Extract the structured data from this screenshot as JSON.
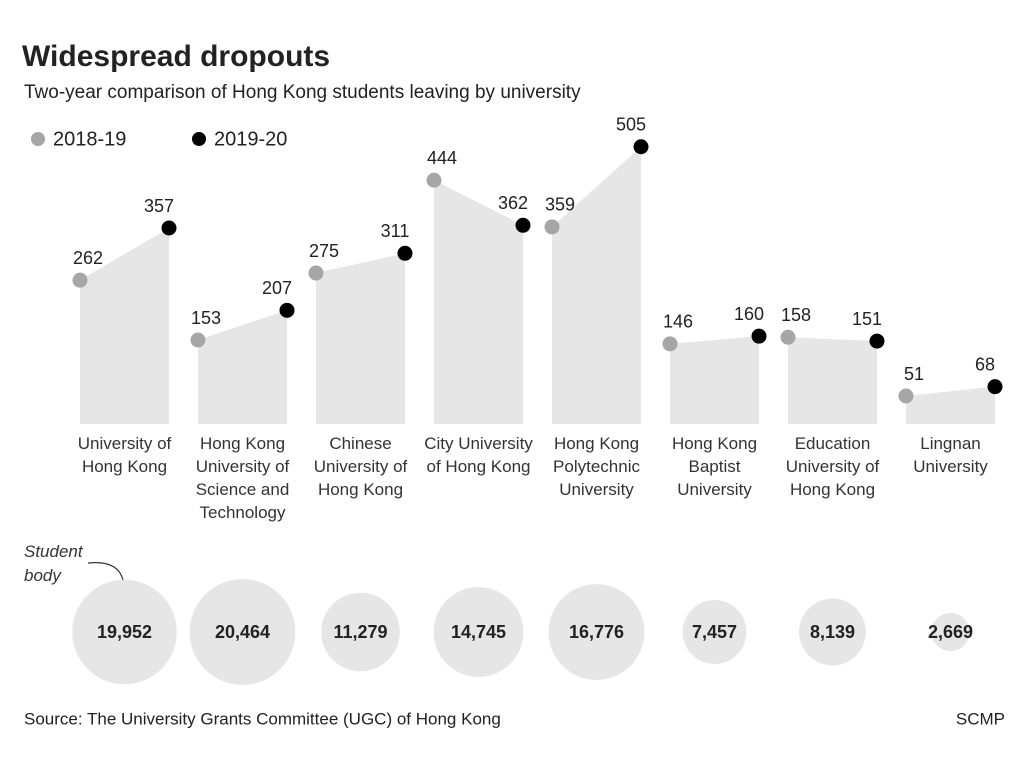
{
  "chart_data": {
    "type": "slope",
    "title": "Widespread dropouts",
    "subtitle": "Two-year comparison of Hong Kong students leaving by university",
    "categories": [
      "University of Hong Kong",
      "Hong Kong University of Science and Technology",
      "Chinese University of Hong Kong",
      "City University of Hong Kong",
      "Hong Kong Polytechnic University",
      "Hong Kong Baptist University",
      "Education University of Hong Kong",
      "Lingnan University"
    ],
    "series": [
      {
        "name": "2018-19",
        "color": "#a6a6a6",
        "values": [
          262,
          153,
          275,
          444,
          359,
          146,
          158,
          51
        ]
      },
      {
        "name": "2019-20",
        "color": "#000000",
        "values": [
          357,
          207,
          311,
          362,
          505,
          160,
          151,
          68
        ]
      }
    ],
    "area_color": "#e6e6e6",
    "bubbles": {
      "label": "Student body",
      "color": "#e6e6e6",
      "values": [
        19952,
        20464,
        11279,
        14745,
        16776,
        7457,
        8139,
        2669
      ],
      "value_labels": [
        "19,952",
        "20,464",
        "11,279",
        "14,745",
        "16,776",
        "7,457",
        "8,139",
        "2,669"
      ]
    },
    "source": "Source: The University Grants Committee (UGC) of Hong Kong",
    "credit": "SCMP"
  }
}
